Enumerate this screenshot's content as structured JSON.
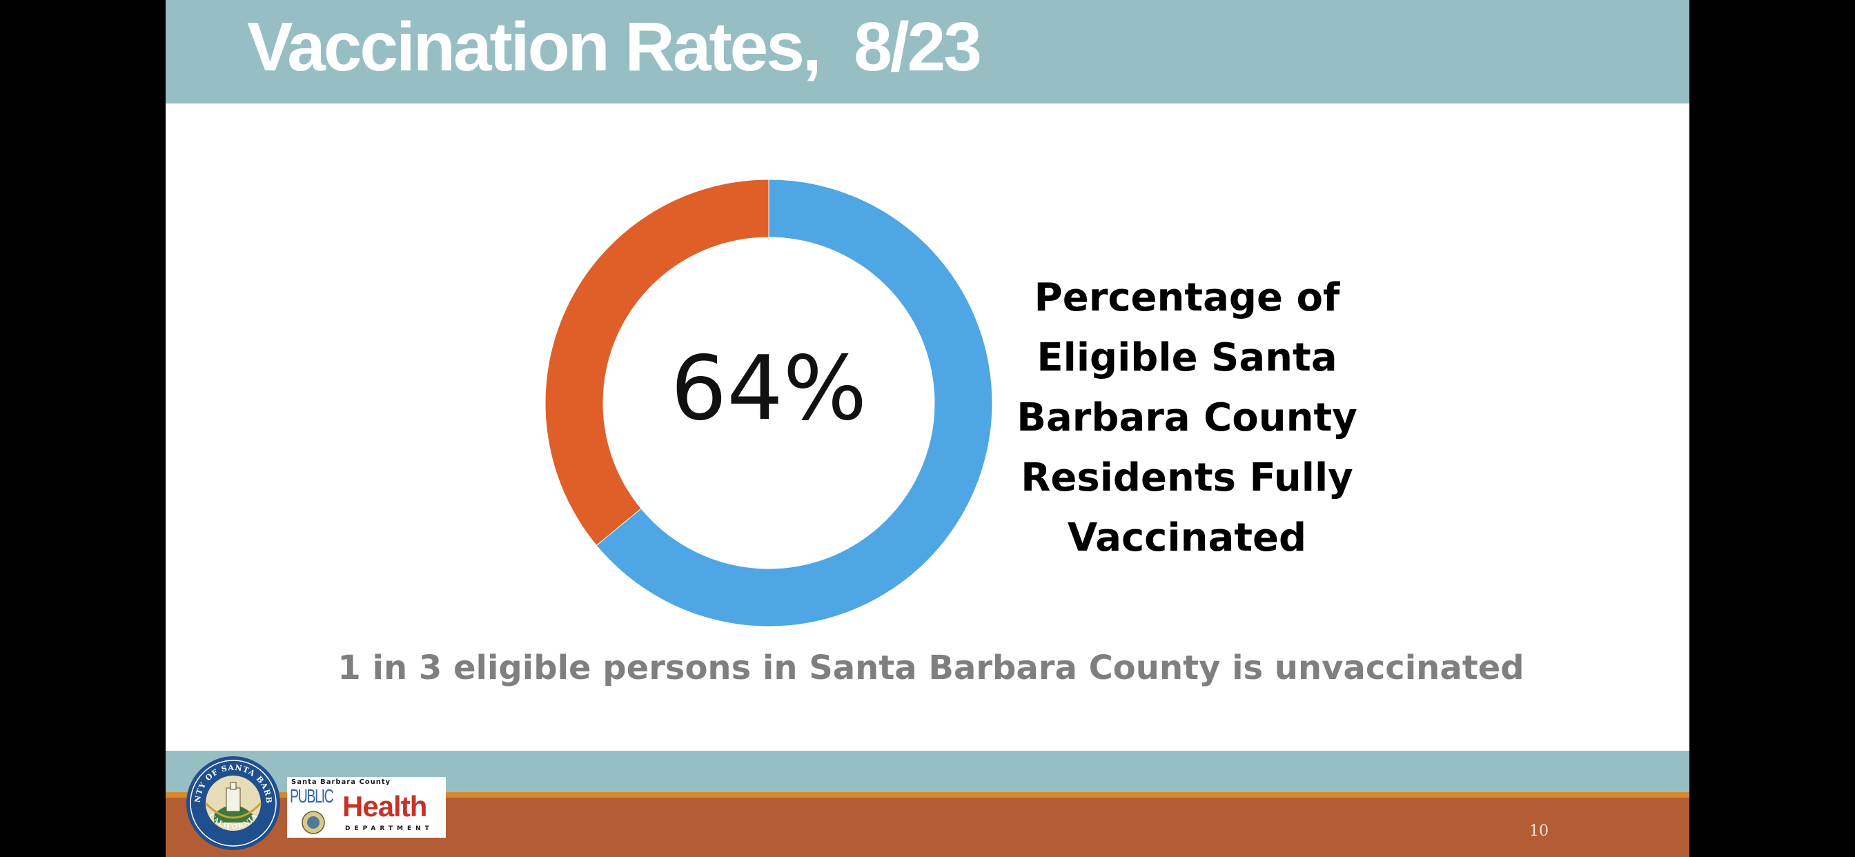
{
  "slide": {
    "title": "Vaccination Rates,  8/23",
    "subtitle": "1 in 3 eligible persons in Santa Barbara County is unvaccinated",
    "page_number": "10"
  },
  "chart_data": {
    "type": "pie",
    "style": "donut",
    "slices": [
      {
        "value": 64,
        "color": "#4ea6e4"
      },
      {
        "value": 36,
        "color": "#e05f29"
      }
    ],
    "center_label": "64%",
    "side_label": [
      "Percentage of",
      "Eligible Santa",
      "Barbara County",
      "Residents Fully",
      "Vaccinated"
    ]
  },
  "footer": {
    "colors": {
      "teal": "#97bfc3",
      "orange": "#b45d35",
      "gold": "#d48b2e"
    },
    "seal_text": "COUNTY OF SANTA BARBARA",
    "seal_bottom": "CALIFORNIA",
    "logo": {
      "top": "Santa Barbara County",
      "public": "PUBLIC",
      "health": "Health",
      "dept": "DEPARTMENT"
    }
  }
}
